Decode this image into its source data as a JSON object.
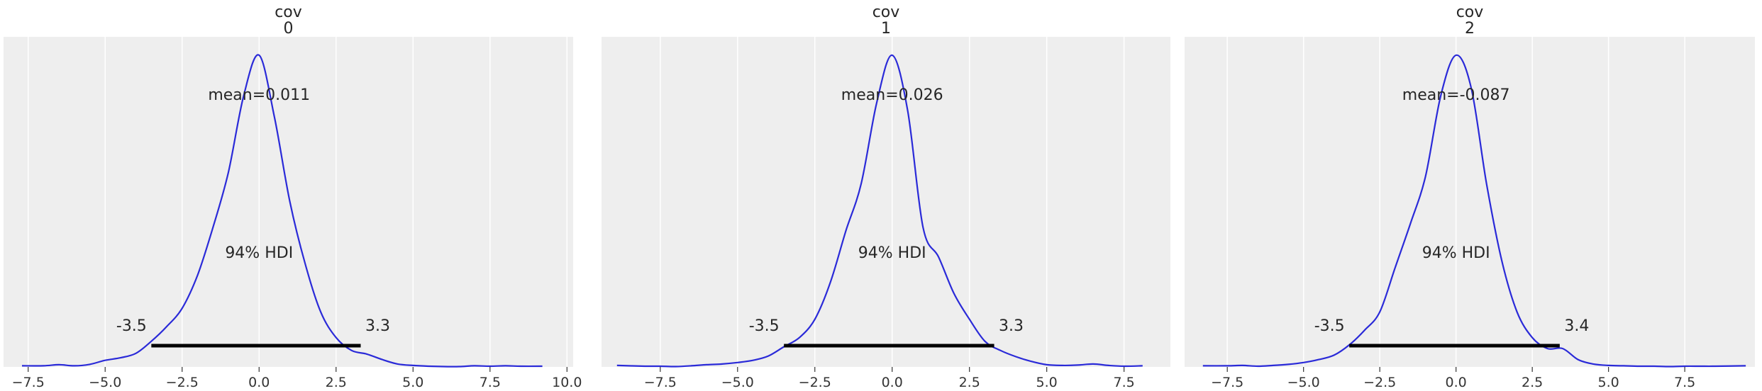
{
  "chart_data": [
    {
      "type": "area",
      "title_line1": "cov",
      "title_line2": "0",
      "xlim": [
        -8.3,
        10.2
      ],
      "xticks": [
        -7.5,
        -5.0,
        -2.5,
        0.0,
        2.5,
        5.0,
        7.5,
        10.0
      ],
      "xtick_labels": [
        "−7.5",
        "−5.0",
        "−2.5",
        "0.0",
        "2.5",
        "5.0",
        "7.5",
        "10.0"
      ],
      "mean_label": "mean=0.011",
      "hdi_label": "94% HDI",
      "hdi": [
        -3.5,
        3.3
      ],
      "hdi_low_label": "-3.5",
      "hdi_high_label": "3.3",
      "density_x": [
        -7.7,
        -7.0,
        -6.5,
        -6.0,
        -5.5,
        -5.0,
        -4.5,
        -4.0,
        -3.5,
        -3.0,
        -2.5,
        -2.0,
        -1.5,
        -1.0,
        -0.5,
        0.0,
        0.5,
        1.0,
        1.5,
        2.0,
        2.5,
        3.0,
        3.5,
        4.0,
        4.5,
        5.0,
        5.5,
        6.0,
        6.5,
        7.0,
        7.5,
        8.0,
        8.5,
        9.2
      ],
      "density_y": [
        0.003,
        0.003,
        0.006,
        0.003,
        0.007,
        0.018,
        0.025,
        0.037,
        0.07,
        0.11,
        0.16,
        0.25,
        0.38,
        0.53,
        0.74,
        0.85,
        0.68,
        0.45,
        0.28,
        0.15,
        0.08,
        0.045,
        0.035,
        0.02,
        0.008,
        0.004,
        0.002,
        0.001,
        0.001,
        0.003,
        0.002,
        0.003,
        0.002,
        0.002
      ]
    },
    {
      "type": "area",
      "title_line1": "cov",
      "title_line2": "1",
      "xlim": [
        -9.4,
        9.0
      ],
      "xticks": [
        -7.5,
        -5.0,
        -2.5,
        0.0,
        2.5,
        5.0,
        7.5
      ],
      "xtick_labels": [
        "−7.5",
        "−5.0",
        "−2.5",
        "0.0",
        "2.5",
        "5.0",
        "7.5"
      ],
      "mean_label": "mean=0.026",
      "hdi_label": "94% HDI",
      "hdi": [
        -3.5,
        3.3
      ],
      "hdi_low_label": "-3.5",
      "hdi_high_label": "3.3",
      "density_x": [
        -8.9,
        -8.0,
        -7.5,
        -7.0,
        -6.5,
        -6.0,
        -5.5,
        -5.0,
        -4.5,
        -4.0,
        -3.5,
        -3.0,
        -2.5,
        -2.0,
        -1.5,
        -1.0,
        -0.5,
        0.0,
        0.5,
        1.0,
        1.5,
        2.0,
        2.5,
        3.0,
        3.5,
        4.0,
        4.5,
        5.0,
        5.5,
        6.0,
        6.5,
        7.0,
        7.5,
        8.1
      ],
      "density_y": [
        0.004,
        0.002,
        0.002,
        0.001,
        0.003,
        0.006,
        0.008,
        0.012,
        0.018,
        0.03,
        0.055,
        0.08,
        0.13,
        0.23,
        0.37,
        0.5,
        0.72,
        0.85,
        0.7,
        0.38,
        0.3,
        0.2,
        0.13,
        0.07,
        0.045,
        0.028,
        0.015,
        0.006,
        0.004,
        0.005,
        0.008,
        0.004,
        0.002,
        0.003
      ]
    },
    {
      "type": "area",
      "title_line1": "cov",
      "title_line2": "2",
      "xlim": [
        -8.9,
        9.8
      ],
      "xticks": [
        -7.5,
        -5.0,
        -2.5,
        0.0,
        2.5,
        5.0,
        7.5
      ],
      "xtick_labels": [
        "−7.5",
        "−5.0",
        "−2.5",
        "0.0",
        "2.5",
        "5.0",
        "7.5"
      ],
      "mean_label": "mean=-0.087",
      "hdi_label": "94% HDI",
      "hdi": [
        -3.5,
        3.4
      ],
      "hdi_low_label": "-3.5",
      "hdi_high_label": "3.4",
      "density_x": [
        -8.3,
        -7.5,
        -7.0,
        -6.5,
        -6.0,
        -5.5,
        -5.0,
        -4.5,
        -4.0,
        -3.5,
        -3.0,
        -2.5,
        -2.0,
        -1.5,
        -1.0,
        -0.5,
        0.0,
        0.5,
        1.0,
        1.5,
        2.0,
        2.5,
        3.0,
        3.5,
        4.0,
        4.5,
        5.0,
        5.5,
        6.0,
        6.5,
        7.0,
        7.5,
        8.0,
        8.5,
        9.5
      ],
      "density_y": [
        0.003,
        0.003,
        0.004,
        0.002,
        0.004,
        0.007,
        0.012,
        0.02,
        0.032,
        0.06,
        0.1,
        0.15,
        0.27,
        0.39,
        0.52,
        0.74,
        0.85,
        0.76,
        0.5,
        0.29,
        0.15,
        0.08,
        0.05,
        0.05,
        0.02,
        0.008,
        0.004,
        0.003,
        0.002,
        0.002,
        0.001,
        0.002,
        0.002,
        0.002,
        0.003
      ]
    }
  ]
}
